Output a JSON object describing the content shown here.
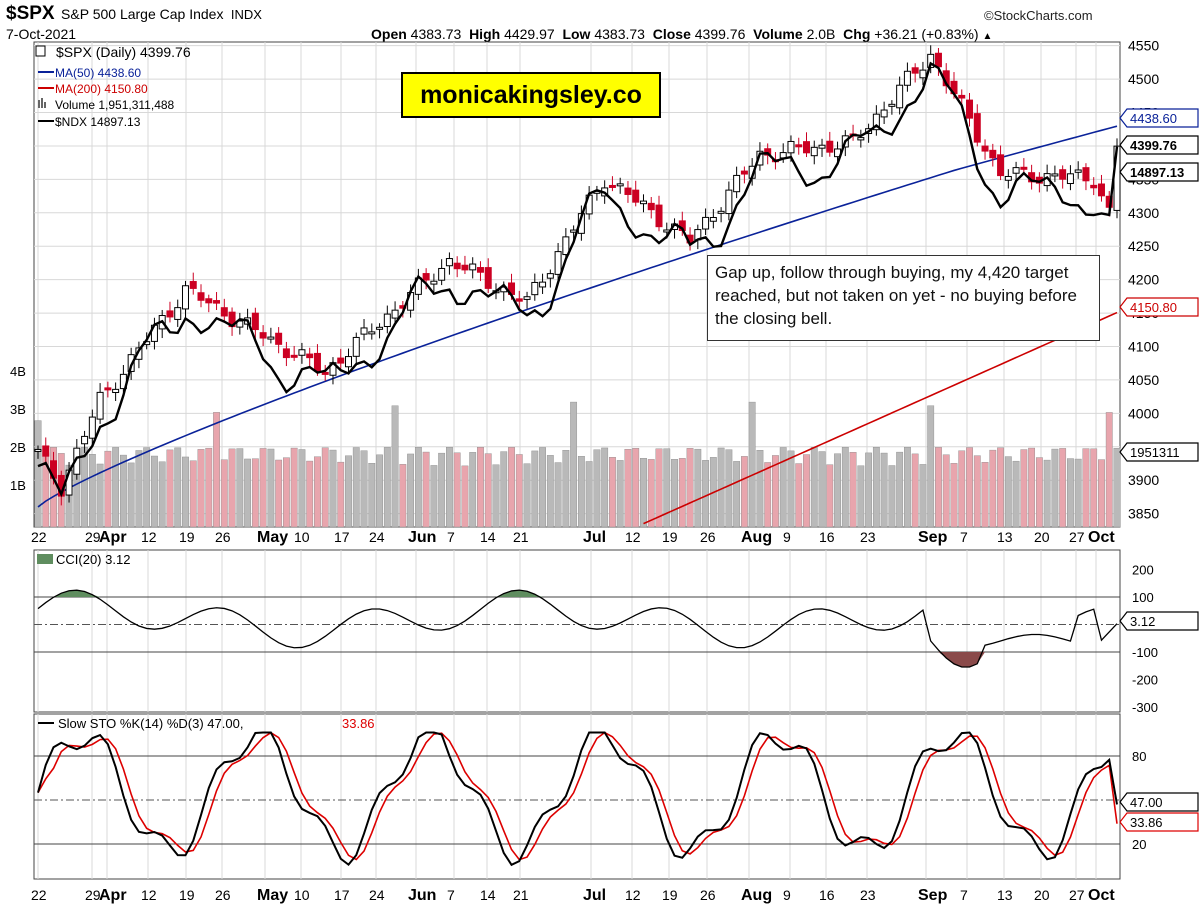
{
  "header": {
    "symbol": "$SPX",
    "name": "S&P 500 Large Cap Index",
    "exchange": "INDX",
    "brand": "©StockCharts.com",
    "date": "7-Oct-2021",
    "open_label": "Open",
    "open": "4383.73",
    "high_label": "High",
    "high": "4429.97",
    "low_label": "Low",
    "low": "4383.73",
    "close_label": "Close",
    "close": "4399.76",
    "volume_label": "Volume",
    "volume": "2.0B",
    "chg_label": "Chg",
    "chg": "+36.21 (+0.83%)"
  },
  "legend": {
    "price": "$SPX (Daily) 4399.76",
    "ma50": "MA(50) 4438.60",
    "ma200": "MA(200) 4150.80",
    "volume": "Volume 1,951,311,488",
    "ndx": "$NDX 14897.13"
  },
  "banner": "monicakingsley.co",
  "annotation": "Gap up, follow through buying, my 4,420 target reached, but not taken on yet - no buying before the closing bell.",
  "tags": {
    "ma50": "4438.60",
    "close": "4399.76",
    "ndx": "14897.13",
    "ma200": "4150.80",
    "volume": "1951311",
    "cci": "3.12",
    "stoK": "47.00",
    "stoD": "33.86"
  },
  "colors": {
    "up": "#ffffff",
    "down": "#cc0022",
    "ma50": "#0a2299",
    "ma200": "#cc0000",
    "ndx": "#000000",
    "volUp": "#b9b9b9",
    "volDown": "#e8a5ad",
    "cciPos": "#5f8d5f",
    "cciNeg": "#8a4a4a",
    "stoD": "#dd0000"
  },
  "cci_legend": "CCI(20) 3.12",
  "sto_legend": {
    "label": "Slow STO %K(14) %D(3) 47.00,",
    "d": "33.86"
  },
  "chart_data": {
    "type": "candlestick",
    "title": "$SPX S&P 500 Large Cap Index INDX",
    "x_ticks": [
      "22",
      "29",
      "Apr",
      "12",
      "19",
      "26",
      "May",
      "10",
      "17",
      "24",
      "Jun",
      "7",
      "14",
      "21",
      "Jul",
      "12",
      "19",
      "26",
      "Aug",
      "9",
      "16",
      "23",
      "Sep",
      "7",
      "13",
      "20",
      "27",
      "Oct"
    ],
    "y_ticks": [
      3850,
      3900,
      3950,
      4000,
      4050,
      4100,
      4150,
      4200,
      4250,
      4300,
      4350,
      4400,
      4450,
      4500,
      4550
    ],
    "vol_ticks": [
      "1B",
      "2B",
      "3B",
      "4B"
    ],
    "cci_ticks": [
      200,
      100,
      0,
      -100,
      -200,
      -300
    ],
    "sto_ticks": [
      80,
      50,
      20
    ],
    "ylim": [
      3830,
      4560
    ],
    "key_points": [
      {
        "date": "Mar 22",
        "close": 3940
      },
      {
        "date": "Mar 25",
        "close": 3890
      },
      {
        "date": "Apr 1",
        "close": 4020
      },
      {
        "date": "Apr 16",
        "close": 4185
      },
      {
        "date": "May 12",
        "close": 4062
      },
      {
        "date": "May 19",
        "close": 4115
      },
      {
        "date": "Jun 4",
        "close": 4229
      },
      {
        "date": "Jun 18",
        "close": 4166
      },
      {
        "date": "Jul 2",
        "close": 4352
      },
      {
        "date": "Jul 19",
        "close": 4258
      },
      {
        "date": "Aug 2",
        "close": 4387
      },
      {
        "date": "Aug 19",
        "close": 4405
      },
      {
        "date": "Sep 2",
        "close": 4537
      },
      {
        "date": "Sep 20",
        "close": 4358
      },
      {
        "date": "Sep 28",
        "close": 4352
      },
      {
        "date": "Oct 4",
        "close": 4300
      },
      {
        "date": "Oct 7",
        "close": 4399.76
      }
    ],
    "ma50_last": 4438.6,
    "ma200_last": 4150.8,
    "ndx_last": 14897.13,
    "volume_last": 1951311488,
    "cci_last": 3.12,
    "sto_k_last": 47.0,
    "sto_d_last": 33.86
  }
}
